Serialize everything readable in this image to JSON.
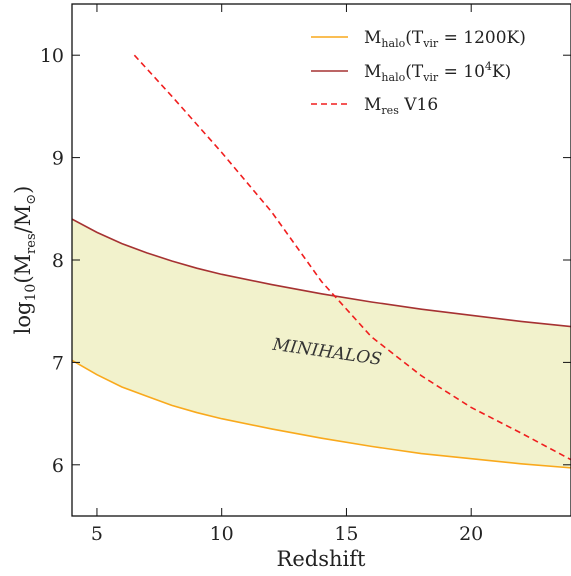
{
  "chart_data": {
    "type": "line",
    "xlabel": "Redshift",
    "ylabel": {
      "main": "log",
      "sub10": "10",
      "open": "(M",
      "sub_res": "res",
      "mid": "/M",
      "sub_sun": "⊙",
      "close": ")"
    },
    "xlim": [
      4,
      24
    ],
    "ylim": [
      5.5,
      10.5
    ],
    "xticks": [
      5,
      10,
      15,
      20
    ],
    "yticks": [
      6,
      7,
      8,
      9,
      10
    ],
    "grid": false,
    "legend_position": "top-right",
    "legend": [
      {
        "main": "M",
        "sub": "halo",
        "rest1": "(T",
        "sub2": "vir",
        "rest2": " = 1200K)",
        "sup": "",
        "rest3": ""
      },
      {
        "main": "M",
        "sub": "halo",
        "rest1": "(T",
        "sub2": "vir",
        "rest2": " = 10",
        "sup": "4",
        "rest3": "K)"
      },
      {
        "main": "M",
        "sub": "res",
        "rest1": " V16",
        "sub2": "",
        "rest2": "",
        "sup": "",
        "rest3": ""
      }
    ],
    "annotation": {
      "text": "MINIHALOS",
      "x": 14.2,
      "y": 7.05,
      "rotation": 8
    },
    "fill_between": {
      "lower_series": 0,
      "upper_series": 1,
      "color": "#f2f2cc"
    },
    "series": [
      {
        "color": "#f9a91c",
        "style": "solid",
        "x": [
          4,
          5,
          6,
          7,
          8,
          9,
          10,
          12,
          14,
          16,
          18,
          20,
          22,
          24
        ],
        "y": [
          7.02,
          6.88,
          6.76,
          6.67,
          6.58,
          6.51,
          6.45,
          6.35,
          6.26,
          6.18,
          6.11,
          6.06,
          6.01,
          5.97
        ]
      },
      {
        "color": "#a63232",
        "style": "solid",
        "x": [
          4,
          5,
          6,
          7,
          8,
          9,
          10,
          12,
          14,
          16,
          18,
          20,
          22,
          24
        ],
        "y": [
          8.4,
          8.27,
          8.16,
          8.07,
          7.99,
          7.92,
          7.86,
          7.76,
          7.67,
          7.59,
          7.52,
          7.46,
          7.4,
          7.35
        ]
      },
      {
        "color": "#f01e1e",
        "style": "dashed",
        "x": [
          6.5,
          8,
          10,
          12,
          14,
          16,
          18,
          20,
          22,
          24
        ],
        "y": [
          10.0,
          9.6,
          9.05,
          8.47,
          7.79,
          7.25,
          6.87,
          6.56,
          6.31,
          6.05
        ]
      }
    ]
  }
}
